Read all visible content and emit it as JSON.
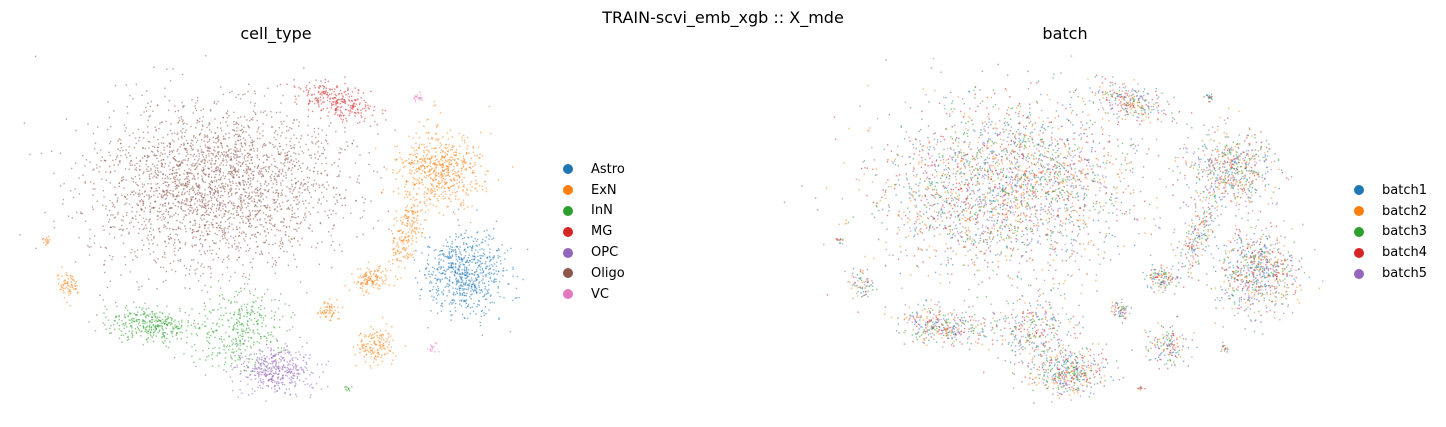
{
  "figure": {
    "suptitle": "TRAIN-scvi_emb_xgb :: X_mde"
  },
  "chart_data": [
    {
      "type": "scatter",
      "title": "cell_type",
      "xlabel": "",
      "ylabel": "",
      "grid": false,
      "axes_visible": false,
      "legend_placement": "right",
      "legend": [
        {
          "name": "Astro",
          "color": "#1f77b4"
        },
        {
          "name": "ExN",
          "color": "#ff7f0e"
        },
        {
          "name": "InN",
          "color": "#2ca02c"
        },
        {
          "name": "MG",
          "color": "#d62728"
        },
        {
          "name": "OPC",
          "color": "#9467bd"
        },
        {
          "name": "Oligo",
          "color": "#8c564b"
        },
        {
          "name": "VC",
          "color": "#e377c2"
        }
      ]
    },
    {
      "type": "scatter",
      "title": "batch",
      "xlabel": "",
      "ylabel": "",
      "grid": false,
      "axes_visible": false,
      "legend_placement": "right",
      "legend": [
        {
          "name": "batch1",
          "color": "#1f77b4"
        },
        {
          "name": "batch2",
          "color": "#ff7f0e"
        },
        {
          "name": "batch3",
          "color": "#2ca02c"
        },
        {
          "name": "batch4",
          "color": "#d62728"
        },
        {
          "name": "batch5",
          "color": "#9467bd"
        }
      ]
    }
  ]
}
